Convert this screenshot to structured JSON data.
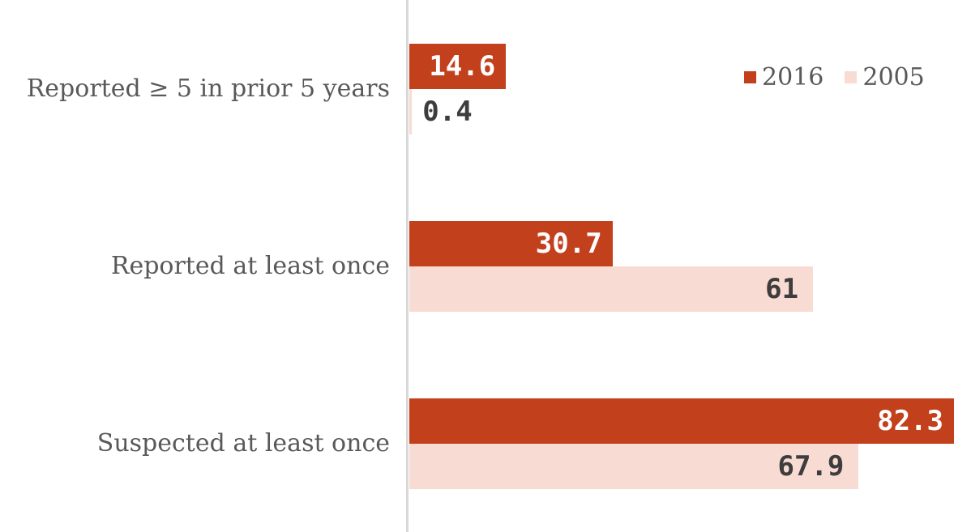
{
  "chart_data": {
    "type": "bar",
    "orientation": "horizontal",
    "title": "",
    "xlabel": "",
    "ylabel": "",
    "categories": [
      "Reported ≥ 5 in prior 5 years",
      "Reported at least once",
      "Suspected at least once"
    ],
    "series": [
      {
        "name": "2016",
        "values": [
          14.6,
          30.7,
          82.3
        ],
        "labels": [
          "14.6",
          "30.7",
          "82.3"
        ],
        "color": "#c3401d"
      },
      {
        "name": "2005",
        "values": [
          0.4,
          61,
          67.9
        ],
        "labels": [
          "0.4",
          "61",
          "67.9"
        ],
        "color": "#f8dbd2"
      }
    ],
    "xlim": [
      0,
      82.3
    ],
    "grid": false,
    "legend_position": "top-right",
    "colors": {
      "series_2016": "#c3401d",
      "series_2005": "#f8dbd2",
      "label_on_dark": "#ffffff",
      "label_on_light": "#3d3d3d",
      "category_text": "#595959",
      "legend_text": "#595959",
      "axis_line": "#d9d9d9",
      "background": "#ffffff"
    }
  }
}
